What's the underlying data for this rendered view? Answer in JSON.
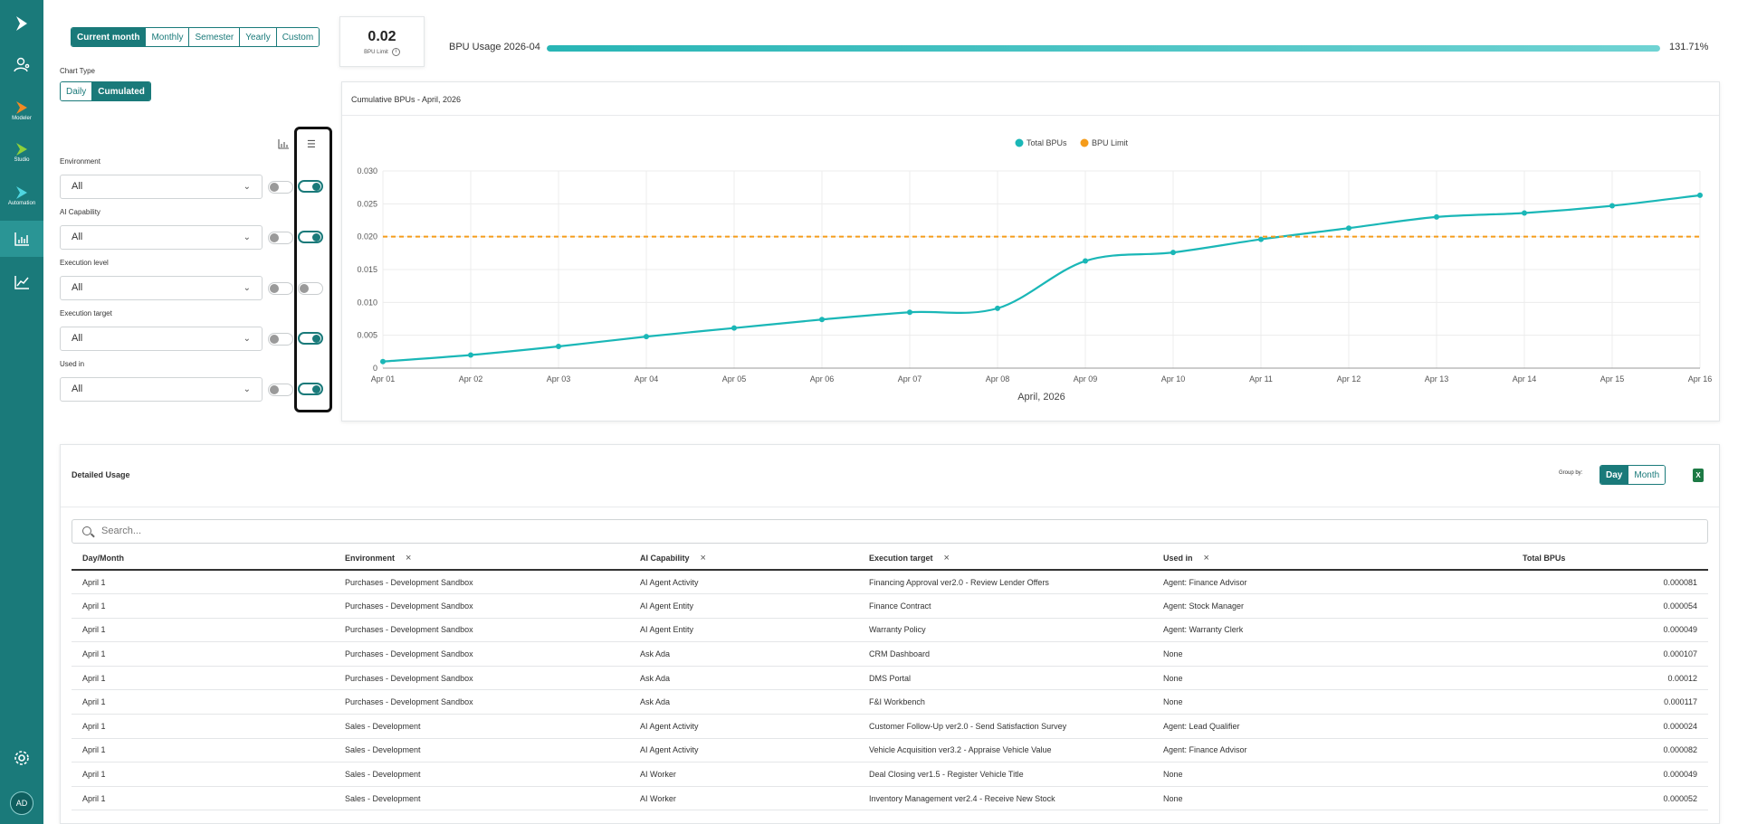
{
  "sidebar": {
    "items": [
      {
        "icon": "logo-icon",
        "label": ""
      },
      {
        "icon": "user-network-icon",
        "label": ""
      },
      {
        "icon": "modeler-icon",
        "label": "Modeler"
      },
      {
        "icon": "studio-icon",
        "label": "Studio"
      },
      {
        "icon": "automation-icon",
        "label": "Automation"
      },
      {
        "icon": "bar-chart-icon",
        "label": ""
      },
      {
        "icon": "line-chart-icon",
        "label": ""
      }
    ],
    "settings_icon": "gear-icon",
    "avatar": "AD"
  },
  "period": {
    "options": [
      "Current month",
      "Monthly",
      "Semester",
      "Yearly",
      "Custom"
    ],
    "selected": "Current month"
  },
  "kpi": {
    "value": "0.02",
    "label": "BPU Limit"
  },
  "usage": {
    "label": "BPU Usage 2026-04",
    "percent_text": "131.71%",
    "fill_fraction": 1.0
  },
  "chart_type": {
    "label": "Chart Type",
    "options": [
      "Daily",
      "Cumulated"
    ],
    "selected": "Cumulated"
  },
  "filters": [
    {
      "label": "Environment",
      "value": "All",
      "toggle_a": false,
      "toggle_b": true
    },
    {
      "label": "AI Capability",
      "value": "All",
      "toggle_a": false,
      "toggle_b": true
    },
    {
      "label": "Execution level",
      "value": "All",
      "toggle_a": false,
      "toggle_b": false
    },
    {
      "label": "Execution target",
      "value": "All",
      "toggle_a": false,
      "toggle_b": true
    },
    {
      "label": "Used in",
      "value": "All",
      "toggle_a": false,
      "toggle_b": true
    }
  ],
  "chart_card": {
    "title": "Cumulative BPUs - April, 2026"
  },
  "chart_data": {
    "type": "line",
    "xlabel": "April, 2026",
    "ylabel": "",
    "x": [
      "Apr 01",
      "Apr 02",
      "Apr 03",
      "Apr 04",
      "Apr 05",
      "Apr 06",
      "Apr 07",
      "Apr 08",
      "Apr 09",
      "Apr 10",
      "Apr 11",
      "Apr 12",
      "Apr 13",
      "Apr 14",
      "Apr 15",
      "Apr 16"
    ],
    "yticks": [
      "0",
      "0.005",
      "0.010",
      "0.015",
      "0.020",
      "0.025",
      "0.030"
    ],
    "ylim": [
      0,
      0.03
    ],
    "legend_position": "top-center",
    "grid": true,
    "series": [
      {
        "name": "Total BPUs",
        "color": "#1ab7b7",
        "style": "solid",
        "values": [
          0.001,
          0.002,
          0.0033,
          0.0048,
          0.0061,
          0.0074,
          0.0085,
          0.0091,
          0.0163,
          0.0176,
          0.0196,
          0.0213,
          0.023,
          0.0236,
          0.0247,
          0.0263
        ]
      },
      {
        "name": "BPU Limit",
        "color": "#f59c1a",
        "style": "dashed",
        "values": [
          0.02,
          0.02,
          0.02,
          0.02,
          0.02,
          0.02,
          0.02,
          0.02,
          0.02,
          0.02,
          0.02,
          0.02,
          0.02,
          0.02,
          0.02,
          0.02
        ]
      }
    ]
  },
  "detail": {
    "title": "Detailed Usage",
    "group_by_label": "Group by:",
    "group_by_options": [
      "Day",
      "Month"
    ],
    "group_by_selected": "Day",
    "search_placeholder": "Search...",
    "columns": [
      "Day/Month",
      "Environment",
      "AI Capability",
      "Execution target",
      "Used in",
      "Total BPUs"
    ],
    "rows": [
      [
        "April 1",
        "Purchases - Development Sandbox",
        "AI Agent Activity",
        "Financing Approval ver2.0 - Review Lender Offers",
        "Agent: Finance Advisor",
        "0.000081"
      ],
      [
        "April 1",
        "Purchases - Development Sandbox",
        "AI Agent Entity",
        "Finance Contract",
        "Agent: Stock Manager",
        "0.000054"
      ],
      [
        "April 1",
        "Purchases - Development Sandbox",
        "AI Agent Entity",
        "Warranty Policy",
        "Agent: Warranty Clerk",
        "0.000049"
      ],
      [
        "April 1",
        "Purchases - Development Sandbox",
        "Ask Ada",
        "CRM Dashboard",
        "None",
        "0.000107"
      ],
      [
        "April 1",
        "Purchases - Development Sandbox",
        "Ask Ada",
        "DMS Portal",
        "None",
        "0.00012"
      ],
      [
        "April 1",
        "Purchases - Development Sandbox",
        "Ask Ada",
        "F&I Workbench",
        "None",
        "0.000117"
      ],
      [
        "April 1",
        "Sales - Development",
        "AI Agent Activity",
        "Customer Follow-Up ver2.0 - Send Satisfaction Survey",
        "Agent: Lead Qualifier",
        "0.000024"
      ],
      [
        "April 1",
        "Sales - Development",
        "AI Agent Activity",
        "Vehicle Acquisition ver3.2 - Appraise Vehicle Value",
        "Agent: Finance Advisor",
        "0.000082"
      ],
      [
        "April 1",
        "Sales - Development",
        "AI Worker",
        "Deal Closing ver1.5 - Register Vehicle Title",
        "None",
        "0.000049"
      ],
      [
        "April 1",
        "Sales - Development",
        "AI Worker",
        "Inventory Management ver2.4 - Receive New Stock",
        "None",
        "0.000052"
      ]
    ]
  },
  "colors": {
    "brand": "#1a7a7a",
    "line": "#1ab7b7",
    "limit": "#f59c1a"
  }
}
